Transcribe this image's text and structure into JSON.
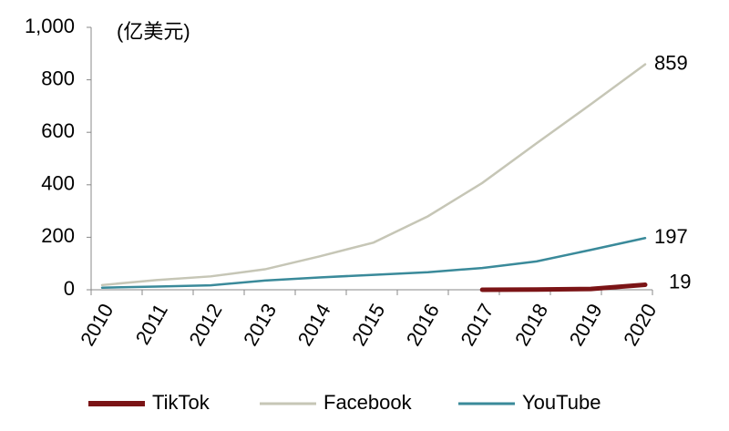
{
  "chart_data": {
    "type": "line",
    "annotation": "(亿美元)",
    "categories": [
      "2010",
      "2011",
      "2012",
      "2013",
      "2014",
      "2015",
      "2016",
      "2017",
      "2018",
      "2019",
      "2020"
    ],
    "series": [
      {
        "name": "TikTok",
        "color": "#7b1416",
        "values": [
          null,
          null,
          null,
          null,
          null,
          null,
          null,
          0,
          1,
          3,
          19
        ]
      },
      {
        "name": "Facebook",
        "color": "#c6c6b6",
        "values": [
          18,
          37,
          51,
          78,
          127,
          180,
          280,
          407,
          558,
          707,
          859
        ]
      },
      {
        "name": "YouTube",
        "color": "#3a8a9a",
        "values": [
          8,
          12,
          17,
          35,
          47,
          57,
          67,
          83,
          108,
          152,
          197
        ]
      }
    ],
    "ylim": [
      0,
      1000
    ],
    "yticks": [
      0,
      200,
      400,
      600,
      800,
      {
        "value": 1000,
        "label": "1,000"
      }
    ],
    "grid": false
  }
}
